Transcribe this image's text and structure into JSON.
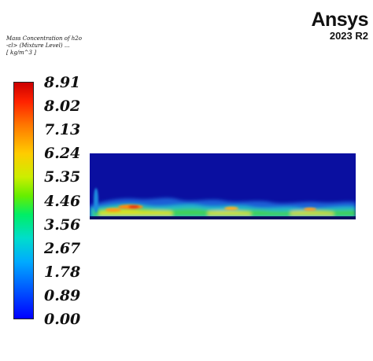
{
  "legend": {
    "title_lines": [
      "Mass Concentration of h2o",
      "-cl> (Mixture Level) ...",
      "[ kg/m^3 ]"
    ],
    "ticks": [
      "8.91",
      "8.02",
      "7.13",
      "6.24",
      "5.35",
      "4.46",
      "3.56",
      "2.67",
      "1.78",
      "0.89",
      "0.00"
    ]
  },
  "logo": {
    "brand": "Ansys",
    "version": "2023 R2"
  },
  "colors": {
    "background": "#ffffff",
    "field": "#0a0fa0",
    "max": "#cc0000",
    "min": "#0000ff"
  }
}
